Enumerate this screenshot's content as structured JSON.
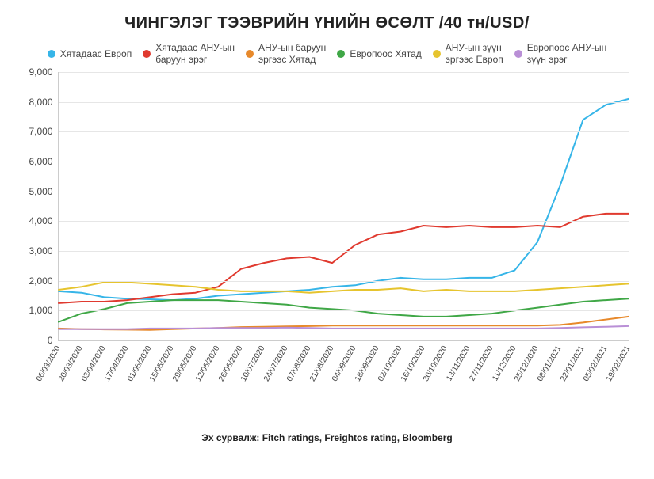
{
  "title": "ЧИНГЭЛЭГ ТЭЭВРИЙН ҮНИЙН ӨСӨЛТ /40 тн/USD/",
  "source_label": "Эх сурвалж: Fitch ratings, Freightos rating, Bloomberg",
  "chart": {
    "type": "line",
    "background_color": "#ffffff",
    "grid_color": "#e6e6e6",
    "axis_color": "#cccccc",
    "text_color": "#444444",
    "title_fontsize": 20,
    "label_fontsize": 12,
    "tick_fontsize": 10,
    "line_width": 2,
    "ylim": [
      0,
      9000
    ],
    "ytick_step": 1000,
    "y_ticks": [
      0,
      1000,
      2000,
      3000,
      4000,
      5000,
      6000,
      7000,
      8000,
      9000
    ],
    "y_tick_labels": [
      "0",
      "1,000",
      "2,000",
      "3,000",
      "4,000",
      "5,000",
      "6,000",
      "7,000",
      "8,000",
      "9,000"
    ],
    "x_labels": [
      "06/03/2020",
      "20/03/2020",
      "03/04/2020",
      "17/04/2020",
      "01/05/2020",
      "15/05/2020",
      "29/05/2020",
      "12/06/2020",
      "26/06/2020",
      "10/07/2020",
      "24/07/2020",
      "07/08/2020",
      "21/08/2020",
      "04/09/2020",
      "18/09/2020",
      "02/10/2020",
      "16/10/2020",
      "30/10/2020",
      "13/11/2020",
      "27/11/2020",
      "11/12/2020",
      "25/12/2020",
      "08/01/2021",
      "22/01/2021",
      "05/02/2021",
      "19/02/2021"
    ],
    "legend_position": "top",
    "series": [
      {
        "name": "Хятадаас Европ",
        "color": "#36b5e8",
        "values": [
          1650,
          1600,
          1450,
          1400,
          1380,
          1350,
          1400,
          1500,
          1550,
          1600,
          1650,
          1700,
          1800,
          1850,
          2000,
          2100,
          2050,
          2050,
          2100,
          2100,
          2350,
          3300,
          5200,
          7400,
          7900,
          8100
        ]
      },
      {
        "name": "Хятадаас АНУ-ын баруун эрэг",
        "color": "#e03a2f",
        "values": [
          1250,
          1300,
          1300,
          1350,
          1450,
          1550,
          1600,
          1800,
          2400,
          2600,
          2750,
          2800,
          2600,
          3200,
          3550,
          3650,
          3850,
          3800,
          3850,
          3800,
          3800,
          3850,
          3800,
          4150,
          4250,
          4250
        ]
      },
      {
        "name": "АНУ-ын баруун эргээс Хятад",
        "color": "#e7892b",
        "values": [
          400,
          380,
          370,
          360,
          350,
          380,
          400,
          420,
          450,
          460,
          470,
          480,
          500,
          500,
          500,
          500,
          500,
          500,
          500,
          500,
          500,
          500,
          520,
          600,
          700,
          800
        ]
      },
      {
        "name": "Европоос Хятад",
        "color": "#3fa746",
        "values": [
          620,
          900,
          1050,
          1250,
          1300,
          1350,
          1350,
          1350,
          1300,
          1250,
          1200,
          1100,
          1050,
          1000,
          900,
          850,
          800,
          800,
          850,
          900,
          1000,
          1100,
          1200,
          1300,
          1350,
          1400
        ]
      },
      {
        "name": "АНУ-ын зүүн эргээс Европ",
        "color": "#e6c42e",
        "values": [
          1700,
          1800,
          1950,
          1950,
          1900,
          1850,
          1800,
          1700,
          1650,
          1650,
          1650,
          1600,
          1650,
          1700,
          1700,
          1750,
          1650,
          1700,
          1650,
          1650,
          1650,
          1700,
          1750,
          1800,
          1850,
          1900
        ]
      },
      {
        "name": "Европоос АНУ-ын зүүн эрэг",
        "color": "#b98fd6",
        "values": [
          380,
          380,
          380,
          380,
          400,
          400,
          400,
          420,
          420,
          420,
          430,
          420,
          400,
          400,
          400,
          400,
          400,
          400,
          400,
          400,
          400,
          400,
          420,
          440,
          460,
          480
        ]
      }
    ]
  }
}
